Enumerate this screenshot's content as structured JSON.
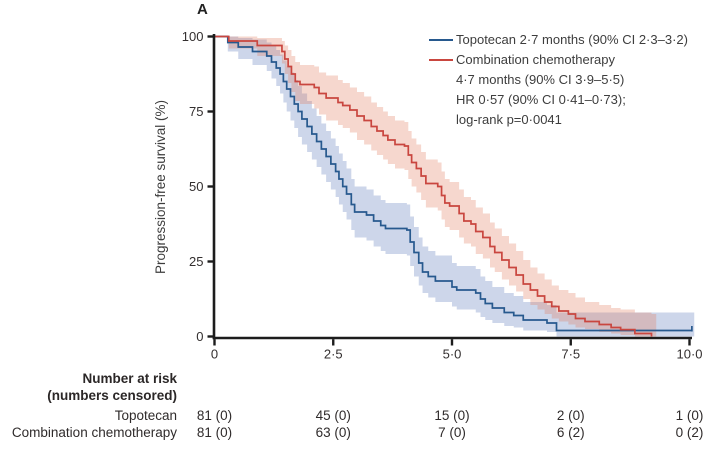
{
  "figure": {
    "panel_label": "A",
    "background": "#ffffff"
  },
  "legend": {
    "lines": [
      "Topotecan 2·7 months (90% CI 2·3–3·2)",
      "Combination chemotherapy",
      "4·7 months (90% CI 3·9–5·5)",
      "HR 0·57 (90% CI 0·41–0·73);",
      "log-rank p=0·0041"
    ]
  },
  "risk_table": {
    "header_lines": [
      "Number at risk",
      "(numbers censored)"
    ],
    "rows": [
      {
        "label": "Topotecan",
        "values": [
          "81 (0)",
          "45 (0)",
          "15 (0)",
          "2 (0)",
          "1 (0)"
        ]
      },
      {
        "label": "Combination chemotherapy",
        "values": [
          "81 (0)",
          "63 (0)",
          "7 (0)",
          "6 (2)",
          "0 (2)"
        ]
      }
    ]
  },
  "chart_data": {
    "type": "line",
    "subtype": "kaplan-meier-step",
    "title": "",
    "xlabel": "",
    "ylabel": "Progression-free survival (%)",
    "xlim": [
      0,
      10.2
    ],
    "ylim": [
      0,
      100
    ],
    "grid": false,
    "legend_position": "top-right-inside",
    "axis_color": "#1c1c1c",
    "x_ticks": {
      "values": [
        0,
        2.5,
        5,
        7.5,
        10
      ],
      "labels": [
        "0",
        "2·5",
        "5·0",
        "7·5",
        "10·0"
      ]
    },
    "y_ticks": {
      "values": [
        0,
        25,
        50,
        75,
        100
      ],
      "labels": [
        "0",
        "25",
        "50",
        "75",
        "100"
      ]
    },
    "series": [
      {
        "name": "Topotecan",
        "median_months": 2.7,
        "ci90": [
          2.3,
          3.2
        ],
        "color": "#27598e",
        "band_color": "rgba(88,118,184,0.30)",
        "band_end_t": 10.1,
        "end_censor_tick": true,
        "points": [
          [
            0,
            100,
            100,
            100
          ],
          [
            0.28,
            98,
            95,
            100
          ],
          [
            0.5,
            96.5,
            92.5,
            99.5
          ],
          [
            0.8,
            95,
            90.5,
            99
          ],
          [
            1.1,
            93.5,
            88.5,
            98
          ],
          [
            1.2,
            91.5,
            86,
            97
          ],
          [
            1.3,
            89.5,
            83.5,
            95.5
          ],
          [
            1.38,
            87.5,
            81,
            94
          ],
          [
            1.45,
            85,
            78,
            92
          ],
          [
            1.52,
            82.5,
            75,
            90
          ],
          [
            1.6,
            80,
            72,
            88
          ],
          [
            1.68,
            77.5,
            69.5,
            85.5
          ],
          [
            1.76,
            75,
            66.5,
            83.5
          ],
          [
            1.84,
            72.5,
            64,
            81
          ],
          [
            1.95,
            70,
            61.5,
            78.5
          ],
          [
            2.05,
            67.5,
            59,
            76
          ],
          [
            2.15,
            65,
            56.5,
            73.5
          ],
          [
            2.25,
            62.5,
            54,
            71
          ],
          [
            2.35,
            60,
            51.5,
            68.5
          ],
          [
            2.45,
            57.5,
            49,
            66
          ],
          [
            2.55,
            55,
            46.5,
            63.5
          ],
          [
            2.62,
            52.5,
            44,
            61
          ],
          [
            2.7,
            50,
            41.5,
            58.5
          ],
          [
            2.78,
            47.5,
            39,
            56
          ],
          [
            2.88,
            44,
            35.5,
            52.5
          ],
          [
            2.95,
            41.5,
            33,
            50
          ],
          [
            3.2,
            40.5,
            32,
            49
          ],
          [
            3.35,
            38.5,
            30,
            47
          ],
          [
            3.5,
            37,
            28.5,
            45.5
          ],
          [
            3.6,
            36,
            27.5,
            44.5
          ],
          [
            4.05,
            35.5,
            27,
            44
          ],
          [
            4.12,
            31.5,
            23.5,
            40
          ],
          [
            4.2,
            28,
            20,
            36.5
          ],
          [
            4.3,
            24.5,
            17,
            33
          ],
          [
            4.38,
            21.5,
            14.5,
            30
          ],
          [
            4.5,
            20,
            13,
            28.5
          ],
          [
            4.65,
            18.5,
            11.5,
            27
          ],
          [
            5.0,
            16.5,
            10,
            24.5
          ],
          [
            5.1,
            15.5,
            9,
            23.5
          ],
          [
            5.5,
            14.5,
            8,
            22.5
          ],
          [
            5.6,
            12.5,
            6.5,
            20
          ],
          [
            5.7,
            11,
            5.5,
            18.5
          ],
          [
            5.85,
            9.5,
            4.5,
            16.5
          ],
          [
            6.1,
            8,
            3.5,
            14.5
          ],
          [
            6.3,
            7,
            3,
            13.5
          ],
          [
            6.5,
            5.5,
            2,
            11.5
          ],
          [
            7.0,
            4.5,
            1.5,
            10.5
          ],
          [
            7.2,
            2,
            0,
            8
          ],
          [
            10.05,
            2,
            0,
            8
          ]
        ]
      },
      {
        "name": "Combination chemotherapy",
        "median_months": 4.7,
        "ci90": [
          3.9,
          5.5
        ],
        "hr": "0·57 (90% CI 0·41–0·73)",
        "log_rank_p": "0·0041",
        "color": "#c9463f",
        "band_color": "rgba(224,122,92,0.30)",
        "band_end_t": 9.3,
        "end_censor_tick": false,
        "points": [
          [
            0,
            100,
            100,
            100
          ],
          [
            0.3,
            98.5,
            96,
            100
          ],
          [
            0.9,
            97,
            93.5,
            99.5
          ],
          [
            1.42,
            95,
            91,
            98.5
          ],
          [
            1.48,
            92.5,
            87.5,
            97
          ],
          [
            1.55,
            90,
            84.5,
            95.5
          ],
          [
            1.62,
            87.5,
            81.5,
            93.5
          ],
          [
            1.7,
            85,
            78.5,
            91.5
          ],
          [
            1.8,
            84,
            77.5,
            90.5
          ],
          [
            2.1,
            83,
            76,
            90
          ],
          [
            2.2,
            81,
            74,
            88
          ],
          [
            2.35,
            79.5,
            72,
            87
          ],
          [
            2.6,
            78,
            70.5,
            85.5
          ],
          [
            2.7,
            77,
            69.5,
            84.5
          ],
          [
            2.85,
            75.5,
            68,
            83
          ],
          [
            3.0,
            73.5,
            65.5,
            81.5
          ],
          [
            3.15,
            72,
            64,
            80
          ],
          [
            3.3,
            70,
            62,
            78
          ],
          [
            3.42,
            68.5,
            60.5,
            76.5
          ],
          [
            3.55,
            67,
            59,
            75
          ],
          [
            3.65,
            65.5,
            57.5,
            73.5
          ],
          [
            3.8,
            64,
            56,
            72
          ],
          [
            4.0,
            63.5,
            55.5,
            71.5
          ],
          [
            4.08,
            60.5,
            52.5,
            68.5
          ],
          [
            4.15,
            58,
            50,
            66
          ],
          [
            4.25,
            56,
            48,
            64
          ],
          [
            4.35,
            53.5,
            45.5,
            61.5
          ],
          [
            4.45,
            51,
            43,
            59
          ],
          [
            4.7,
            50,
            42,
            58
          ],
          [
            4.78,
            47,
            39,
            55
          ],
          [
            4.85,
            44.5,
            36.5,
            52.5
          ],
          [
            4.95,
            43.5,
            35.5,
            51.5
          ],
          [
            5.15,
            41,
            33,
            49
          ],
          [
            5.25,
            38.5,
            31,
            46.5
          ],
          [
            5.4,
            37.5,
            30,
            45.5
          ],
          [
            5.5,
            35,
            27.5,
            43
          ],
          [
            5.65,
            33,
            26,
            41
          ],
          [
            5.8,
            30,
            23,
            38
          ],
          [
            5.9,
            28,
            21.5,
            36
          ],
          [
            6.05,
            25.5,
            19,
            33.5
          ],
          [
            6.2,
            23,
            17,
            31
          ],
          [
            6.35,
            20.5,
            15,
            28.5
          ],
          [
            6.5,
            17.5,
            12.5,
            25.5
          ],
          [
            6.65,
            15.5,
            10.5,
            23
          ],
          [
            6.8,
            13.5,
            9,
            21
          ],
          [
            6.95,
            11.5,
            7.5,
            19
          ],
          [
            7.1,
            10,
            6,
            17
          ],
          [
            7.25,
            8.5,
            5,
            15.5
          ],
          [
            7.45,
            7.5,
            4,
            14.5
          ],
          [
            7.6,
            6,
            3,
            13
          ],
          [
            7.8,
            5,
            2.5,
            11.5
          ],
          [
            8.1,
            4,
            1.5,
            10.5
          ],
          [
            8.35,
            3,
            1,
            9.5
          ],
          [
            8.55,
            2.3,
            0.5,
            9
          ],
          [
            8.85,
            1,
            0,
            8
          ],
          [
            9.2,
            0,
            0,
            7.5
          ]
        ]
      }
    ]
  }
}
